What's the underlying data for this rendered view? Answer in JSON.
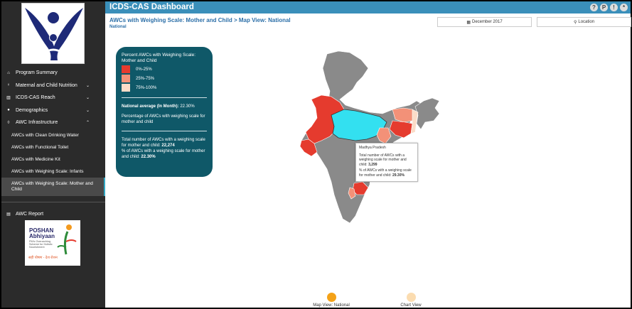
{
  "header": {
    "title": "ICDS-CAS Dashboard",
    "tools": [
      "?",
      "P",
      "!",
      "*"
    ]
  },
  "breadcrumb": {
    "path": "AWCs with Weighing Scale: Mother and Child",
    "separator": ">",
    "view": "Map View: National",
    "sub": "National"
  },
  "filters": {
    "date": "December 2017",
    "location": "Location"
  },
  "sidebar": {
    "items": [
      {
        "label": "Program Summary"
      },
      {
        "label": "Maternal and Child Nutrition"
      },
      {
        "label": "ICDS-CAS Reach"
      },
      {
        "label": "Demographics"
      },
      {
        "label": "AWC Infrastructure"
      }
    ],
    "sub_items": [
      {
        "label": "AWCs with Clean Drinking Water"
      },
      {
        "label": "AWCs with Functional Toilet"
      },
      {
        "label": "AWCs with Medicine Kit"
      },
      {
        "label": "AWCs with Weighing Scale: Infants"
      },
      {
        "label": "AWCs with Weighing Scale: Mother and Child"
      }
    ],
    "report": "AWC Report"
  },
  "poshan": {
    "line1": "POSHAN",
    "line2": "Abhiyaan",
    "tagline": "PM's Overarching Scheme for Holistic Nourishment",
    "hindi": "सही पोषण - देश रोशन"
  },
  "legend": {
    "title": "Percent AWCs with Weighing Scale: Mother and Child",
    "items": [
      {
        "label": "0%-25%",
        "color": "#e53b2e"
      },
      {
        "label": "25%-75%",
        "color": "#f39178"
      },
      {
        "label": "75%-100%",
        "color": "#fbdcc8"
      }
    ]
  },
  "summary": {
    "national_label": "National average (In Month):",
    "national_value": "22.30%",
    "description": "Percentage of AWCs with weighing scale for mother and child",
    "total_label": "Total number of AWCs with a weighing scale for mother and child:",
    "total_value": "22,274",
    "pct_label": "% of AWCs with a weighing scale for mother and child:",
    "pct_value": "22.30%"
  },
  "tooltip": {
    "state": "Madhya Pradesh",
    "total_label": "Total number of AWCs with a weighing scale for mother and child:",
    "total_value": "3,299",
    "pct_label": "% of AWCs with a weighing scale for mother and child:",
    "pct_value": "29.30%"
  },
  "toggles": {
    "map": "Map View: National",
    "chart": "Chart View",
    "map_color": "#f4a218",
    "chart_color": "#fbdcb0"
  },
  "colors": {
    "accent": "#3a8fba",
    "panel": "#0f5868",
    "hover": "#33e0f0",
    "grey": "#8a8a8a"
  }
}
